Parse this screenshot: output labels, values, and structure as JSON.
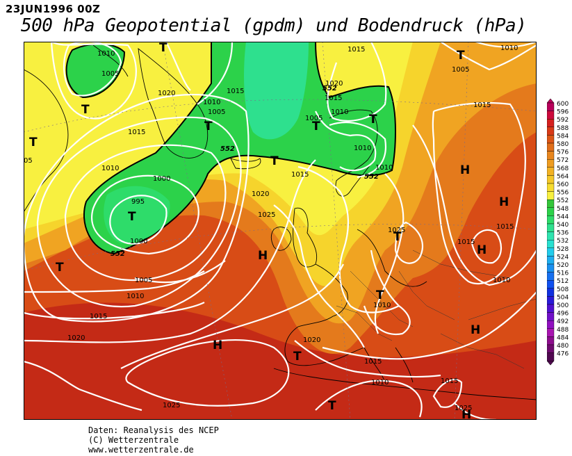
{
  "header": {
    "date": "23JUN1996 00Z",
    "title": "500 hPa Geopotential (gpdm) und Bodendruck (hPa)"
  },
  "credits": {
    "line1": "Daten: Reanalysis des NCEP",
    "line2": "(C) Wetterzentrale",
    "line3": "www.wetterzentrale.de"
  },
  "colorbar": {
    "levels": [
      "600",
      "596",
      "592",
      "588",
      "584",
      "580",
      "576",
      "572",
      "568",
      "564",
      "560",
      "556",
      "552",
      "548",
      "544",
      "540",
      "536",
      "532",
      "528",
      "524",
      "520",
      "516",
      "512",
      "508",
      "504",
      "500",
      "496",
      "492",
      "488",
      "484",
      "480",
      "476"
    ],
    "colors": [
      "#b8005a",
      "#cc0a3c",
      "#d5201e",
      "#d83a16",
      "#dc5616",
      "#e06e1a",
      "#e8861e",
      "#ee9c20",
      "#f2b224",
      "#f4c82a",
      "#f6dc30",
      "#f8f040",
      "#34c63a",
      "#2cd24a",
      "#2edc6a",
      "#2ee08e",
      "#2ee4b0",
      "#28e0d0",
      "#22ccec",
      "#1eaef0",
      "#1a90f0",
      "#1670f0",
      "#1050f0",
      "#1030e0",
      "#2a1ad8",
      "#5010d0",
      "#7010c8",
      "#9010c0",
      "#a814b0",
      "#8c0c8c",
      "#6e0a6e",
      "#500850"
    ]
  },
  "pressure_labels": [
    "1010",
    "1005",
    "1020",
    "1015",
    "1010",
    "1005",
    "1015",
    "1010",
    "1000",
    "995",
    "1000",
    "1005",
    "1010",
    "1015",
    "1020",
    "1025",
    "1015",
    "1020",
    "1025",
    "1010",
    "1005",
    "1010",
    "1005",
    "1015",
    "1010",
    "1005",
    "1010",
    "1015",
    "1020",
    "1015",
    "1025",
    "1015",
    "1015",
    "1010",
    "1010",
    "1015",
    "1020",
    "1015",
    "1010",
    "1015",
    "1025",
    "05"
  ],
  "geopotential_labels": [
    "552",
    "552",
    "552",
    "552",
    "552"
  ],
  "pressure_systems": [
    {
      "type": "T"
    },
    {
      "type": "T"
    },
    {
      "type": "T"
    },
    {
      "type": "T"
    },
    {
      "type": "T"
    },
    {
      "type": "T"
    },
    {
      "type": "T"
    },
    {
      "type": "T"
    },
    {
      "type": "T"
    },
    {
      "type": "T"
    },
    {
      "type": "T"
    },
    {
      "type": "T"
    },
    {
      "type": "T"
    },
    {
      "type": "H"
    },
    {
      "type": "H"
    },
    {
      "type": "H"
    },
    {
      "type": "H"
    },
    {
      "type": "H"
    },
    {
      "type": "H"
    },
    {
      "type": "H"
    },
    {
      "type": "H"
    }
  ]
}
